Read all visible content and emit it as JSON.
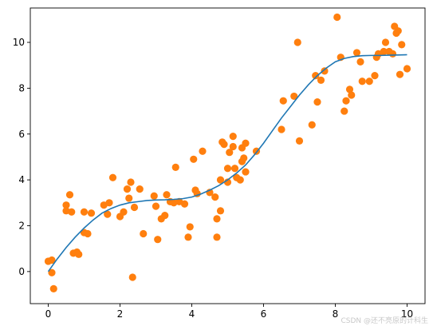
{
  "chart_data": {
    "type": "scatter",
    "title": "",
    "xlabel": "",
    "ylabel": "",
    "xlim": [
      -0.5,
      10.5
    ],
    "ylim": [
      -1.4,
      11.5
    ],
    "x_ticks": [
      0,
      2,
      4,
      6,
      8,
      10
    ],
    "y_ticks": [
      0,
      2,
      4,
      6,
      8,
      10
    ],
    "grid": false,
    "series": [
      {
        "type": "scatter",
        "color": "#ff7f0e",
        "points": [
          [
            0.0,
            0.45
          ],
          [
            0.1,
            0.5
          ],
          [
            0.1,
            -0.05
          ],
          [
            0.15,
            -0.75
          ],
          [
            0.5,
            2.9
          ],
          [
            0.5,
            2.65
          ],
          [
            0.6,
            3.35
          ],
          [
            0.65,
            2.6
          ],
          [
            0.7,
            0.8
          ],
          [
            0.8,
            0.85
          ],
          [
            0.85,
            0.75
          ],
          [
            1.0,
            2.6
          ],
          [
            1.0,
            1.7
          ],
          [
            1.1,
            1.65
          ],
          [
            1.2,
            2.55
          ],
          [
            1.55,
            2.9
          ],
          [
            1.65,
            2.5
          ],
          [
            1.7,
            3.0
          ],
          [
            1.8,
            4.1
          ],
          [
            2.0,
            2.4
          ],
          [
            2.1,
            2.6
          ],
          [
            2.2,
            3.6
          ],
          [
            2.25,
            3.2
          ],
          [
            2.3,
            3.9
          ],
          [
            2.35,
            -0.25
          ],
          [
            2.4,
            2.8
          ],
          [
            2.55,
            3.6
          ],
          [
            2.65,
            1.65
          ],
          [
            2.95,
            3.3
          ],
          [
            3.0,
            2.85
          ],
          [
            3.05,
            1.4
          ],
          [
            3.15,
            2.3
          ],
          [
            3.25,
            2.45
          ],
          [
            3.3,
            3.35
          ],
          [
            3.4,
            3.05
          ],
          [
            3.5,
            3.0
          ],
          [
            3.55,
            4.55
          ],
          [
            3.65,
            3.05
          ],
          [
            3.8,
            2.95
          ],
          [
            3.9,
            1.5
          ],
          [
            3.95,
            1.95
          ],
          [
            4.05,
            4.9
          ],
          [
            4.1,
            3.55
          ],
          [
            4.15,
            3.4
          ],
          [
            4.3,
            5.25
          ],
          [
            4.5,
            3.45
          ],
          [
            4.65,
            3.25
          ],
          [
            4.7,
            1.5
          ],
          [
            4.7,
            2.3
          ],
          [
            4.8,
            2.65
          ],
          [
            4.8,
            4.0
          ],
          [
            4.85,
            5.65
          ],
          [
            4.9,
            5.55
          ],
          [
            5.0,
            4.5
          ],
          [
            5.0,
            3.9
          ],
          [
            5.05,
            5.2
          ],
          [
            5.15,
            5.45
          ],
          [
            5.15,
            5.9
          ],
          [
            5.2,
            4.5
          ],
          [
            5.25,
            4.1
          ],
          [
            5.35,
            4.0
          ],
          [
            5.4,
            5.4
          ],
          [
            5.4,
            4.8
          ],
          [
            5.45,
            4.95
          ],
          [
            5.5,
            4.35
          ],
          [
            5.5,
            5.6
          ],
          [
            5.8,
            5.25
          ],
          [
            6.5,
            6.2
          ],
          [
            6.55,
            7.45
          ],
          [
            6.85,
            7.65
          ],
          [
            6.95,
            10.0
          ],
          [
            7.0,
            5.7
          ],
          [
            7.35,
            6.4
          ],
          [
            7.45,
            8.55
          ],
          [
            7.5,
            7.4
          ],
          [
            7.6,
            8.35
          ],
          [
            7.7,
            8.75
          ],
          [
            8.05,
            11.1
          ],
          [
            8.15,
            9.35
          ],
          [
            8.25,
            7.0
          ],
          [
            8.3,
            7.45
          ],
          [
            8.4,
            7.95
          ],
          [
            8.45,
            7.7
          ],
          [
            8.6,
            9.55
          ],
          [
            8.7,
            9.15
          ],
          [
            8.75,
            8.3
          ],
          [
            8.95,
            8.3
          ],
          [
            9.1,
            8.55
          ],
          [
            9.15,
            9.35
          ],
          [
            9.2,
            9.5
          ],
          [
            9.35,
            9.6
          ],
          [
            9.4,
            10.0
          ],
          [
            9.5,
            9.6
          ],
          [
            9.6,
            9.5
          ],
          [
            9.65,
            10.7
          ],
          [
            9.7,
            10.4
          ],
          [
            9.75,
            10.5
          ],
          [
            9.8,
            8.6
          ],
          [
            9.85,
            9.9
          ],
          [
            10.0,
            8.85
          ]
        ]
      },
      {
        "type": "line",
        "color": "#1f77b4",
        "x": [
          0.0,
          0.25,
          0.5,
          0.75,
          1.0,
          1.25,
          1.5,
          1.75,
          2.0,
          2.25,
          2.5,
          2.75,
          3.0,
          3.25,
          3.5,
          3.75,
          4.0,
          4.25,
          4.5,
          4.75,
          5.0,
          5.25,
          5.5,
          5.75,
          6.0,
          6.25,
          6.5,
          6.75,
          7.0,
          7.25,
          7.5,
          7.75,
          8.0,
          8.25,
          8.5,
          8.75,
          9.0,
          9.25,
          9.5,
          9.75,
          10.0
        ],
        "y": [
          0.0,
          0.55,
          1.05,
          1.5,
          1.9,
          2.25,
          2.55,
          2.75,
          2.9,
          3.0,
          3.05,
          3.1,
          3.12,
          3.13,
          3.15,
          3.18,
          3.25,
          3.38,
          3.55,
          3.75,
          4.0,
          4.3,
          4.65,
          5.1,
          5.6,
          6.15,
          6.7,
          7.2,
          7.7,
          8.15,
          8.55,
          8.88,
          9.15,
          9.3,
          9.38,
          9.42,
          9.43,
          9.43,
          9.44,
          9.45,
          9.46
        ]
      }
    ]
  },
  "watermark": "CSDN @还不亮原的计科生"
}
